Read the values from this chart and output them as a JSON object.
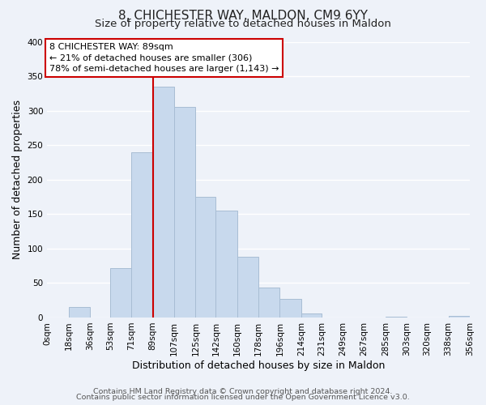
{
  "title": "8, CHICHESTER WAY, MALDON, CM9 6YY",
  "subtitle": "Size of property relative to detached houses in Maldon",
  "xlabel": "Distribution of detached houses by size in Maldon",
  "ylabel": "Number of detached properties",
  "bar_color": "#c8d9ed",
  "bar_edgecolor": "#a8bdd4",
  "vline_x": 89,
  "vline_color": "#cc0000",
  "bin_edges": [
    0,
    18,
    36,
    53,
    71,
    89,
    107,
    125,
    142,
    160,
    178,
    196,
    214,
    231,
    249,
    267,
    285,
    303,
    320,
    338,
    356
  ],
  "bin_labels": [
    "0sqm",
    "18sqm",
    "36sqm",
    "53sqm",
    "71sqm",
    "89sqm",
    "107sqm",
    "125sqm",
    "142sqm",
    "160sqm",
    "178sqm",
    "196sqm",
    "214sqm",
    "231sqm",
    "249sqm",
    "267sqm",
    "285sqm",
    "303sqm",
    "320sqm",
    "338sqm",
    "356sqm"
  ],
  "bar_heights": [
    0,
    15,
    0,
    72,
    240,
    335,
    305,
    175,
    155,
    88,
    44,
    27,
    6,
    0,
    0,
    0,
    1,
    0,
    0,
    2
  ],
  "ylim": [
    0,
    400
  ],
  "yticks": [
    0,
    50,
    100,
    150,
    200,
    250,
    300,
    350,
    400
  ],
  "annotation_title": "8 CHICHESTER WAY: 89sqm",
  "annotation_line1": "← 21% of detached houses are smaller (306)",
  "annotation_line2": "78% of semi-detached houses are larger (1,143) →",
  "annotation_box_facecolor": "#ffffff",
  "annotation_box_edgecolor": "#cc0000",
  "footer1": "Contains HM Land Registry data © Crown copyright and database right 2024.",
  "footer2": "Contains public sector information licensed under the Open Government Licence v3.0.",
  "background_color": "#eef2f9",
  "grid_color": "#ffffff",
  "title_fontsize": 11,
  "subtitle_fontsize": 9.5,
  "axis_label_fontsize": 9,
  "tick_fontsize": 7.5,
  "annotation_fontsize": 8,
  "footer_fontsize": 6.8
}
